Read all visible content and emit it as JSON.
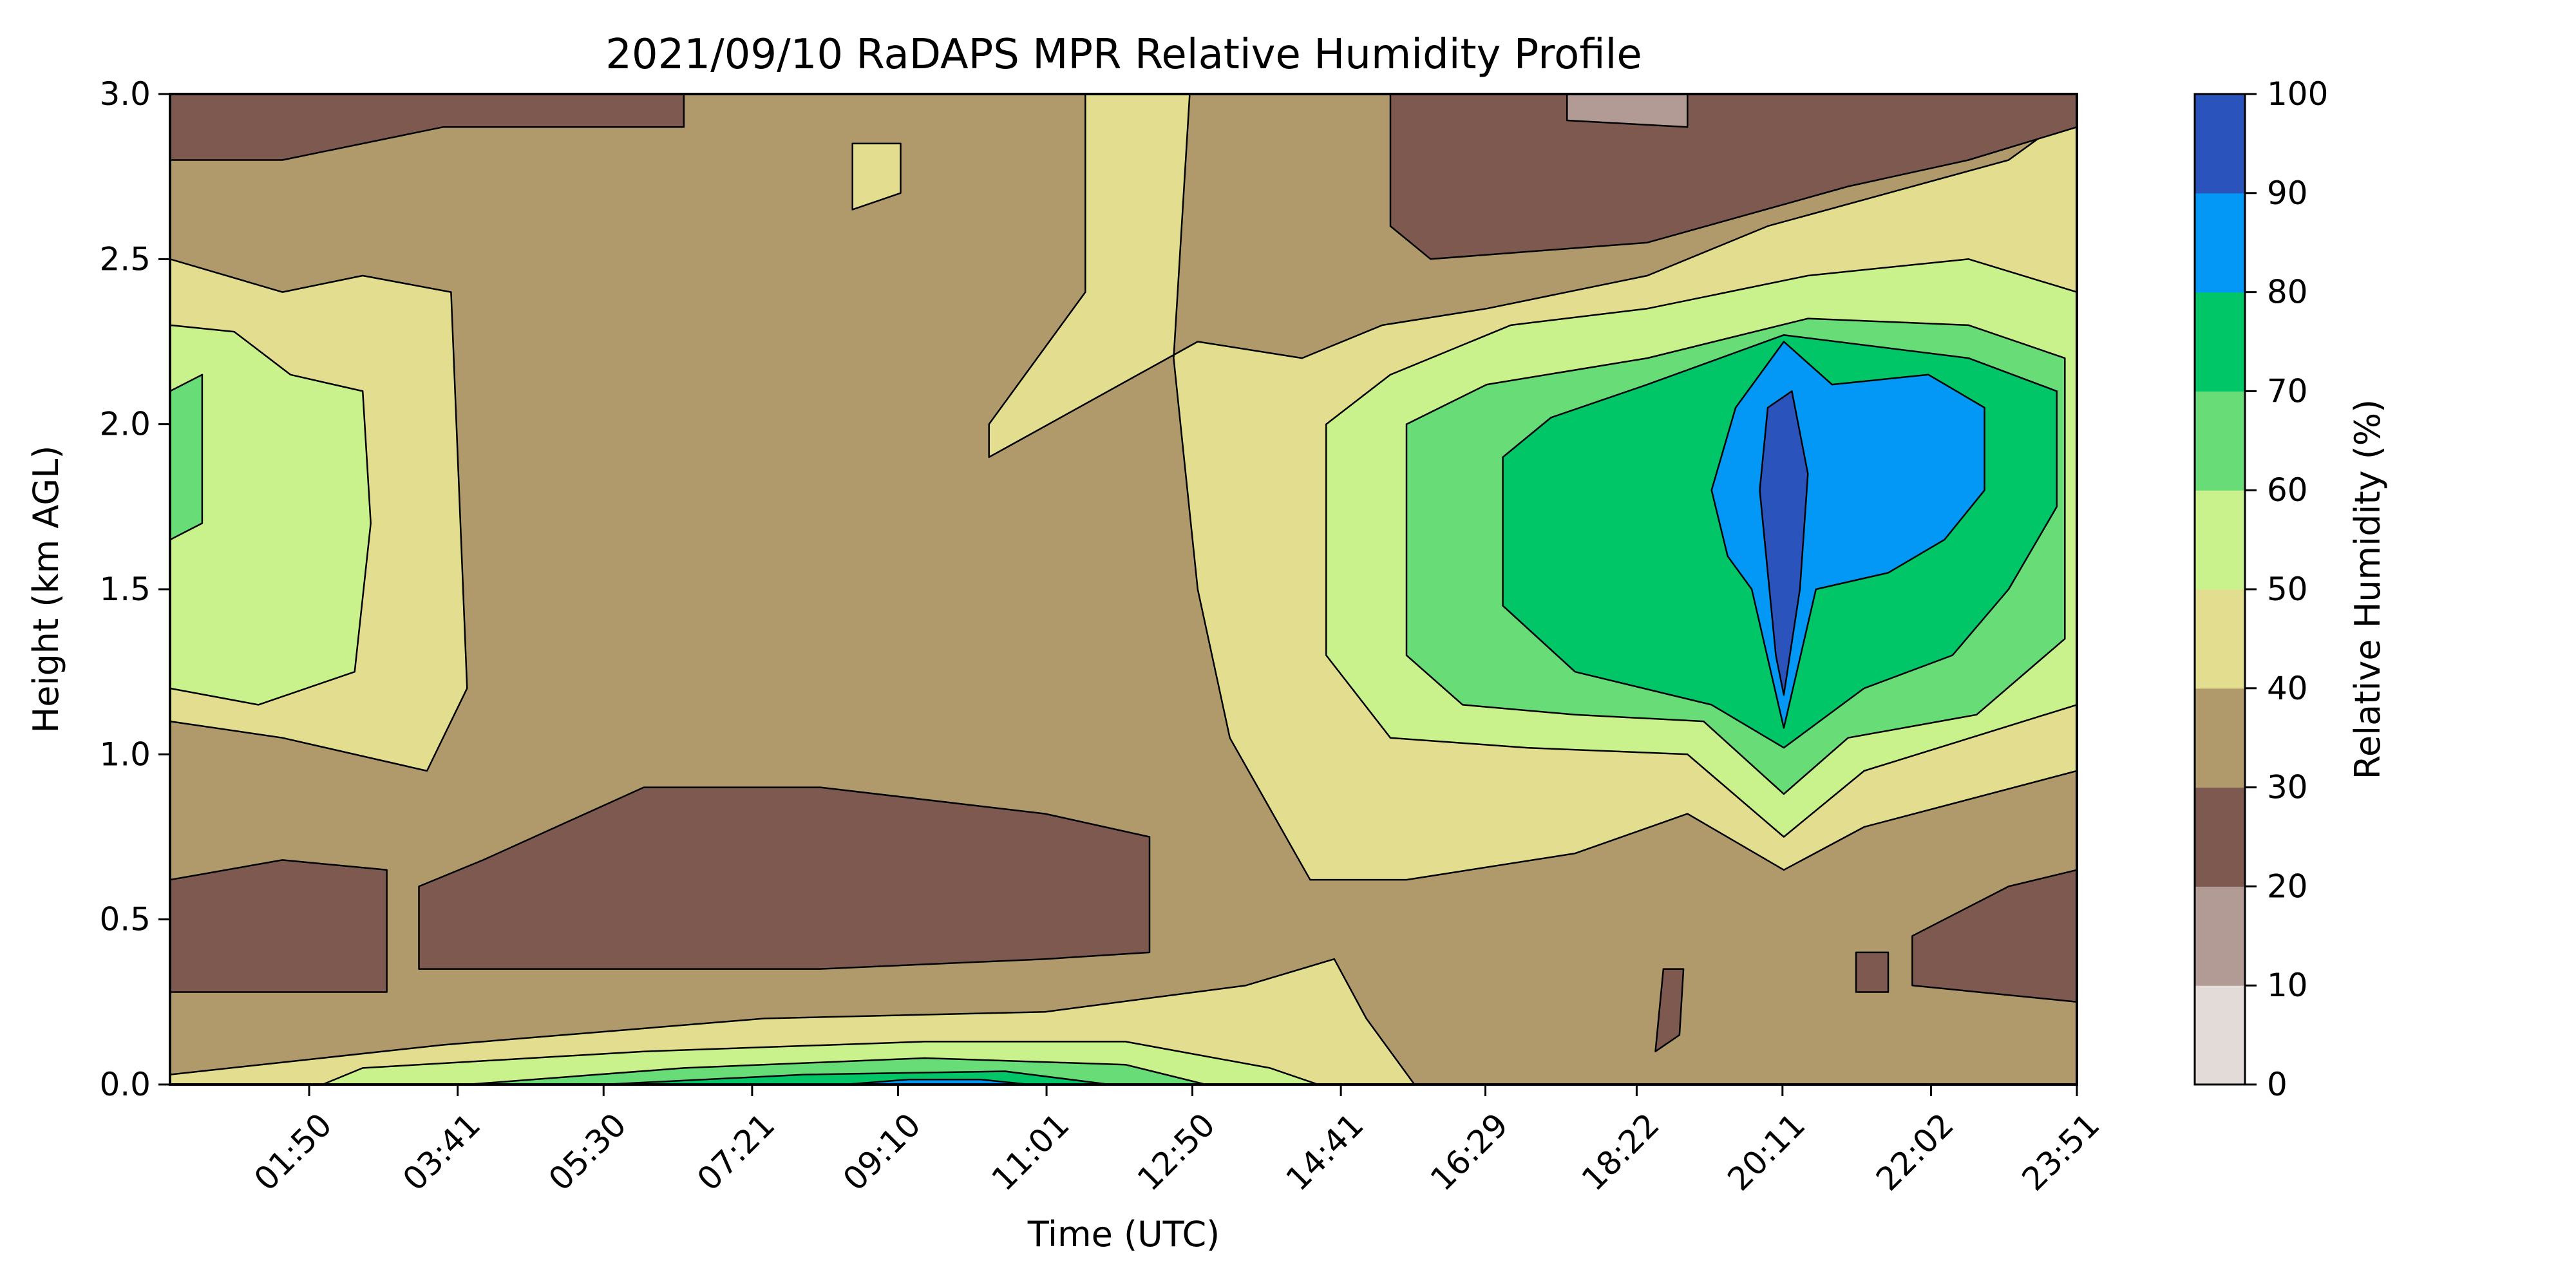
{
  "chart_data": {
    "type": "heatmap",
    "subtype": "filled-contour",
    "title": "2021/09/10 RaDAPS MPR Relative Humidity Profile",
    "xlabel": "Time (UTC)",
    "ylabel": "Height (km AGL)",
    "x_ticks": [
      "01:50",
      "03:41",
      "05:30",
      "07:21",
      "09:10",
      "11:01",
      "12:50",
      "14:41",
      "16:29",
      "18:22",
      "20:11",
      "22:02",
      "23:51"
    ],
    "x_tick_hours": [
      1.833,
      3.683,
      5.5,
      7.35,
      9.167,
      11.017,
      12.833,
      14.683,
      16.483,
      18.367,
      20.183,
      22.033,
      23.85
    ],
    "x_range_hours": [
      0.1,
      23.85
    ],
    "ylim": [
      0,
      3.0
    ],
    "y_ticks": [
      "0.0",
      "0.5",
      "1.0",
      "1.5",
      "2.0",
      "2.5",
      "3.0"
    ],
    "y_tick_values": [
      0,
      0.5,
      1.0,
      1.5,
      2.0,
      2.5,
      3.0
    ],
    "colorbar": {
      "label": "Relative Humidity (%)",
      "levels": [
        0,
        10,
        20,
        30,
        40,
        50,
        60,
        70,
        80,
        90,
        100
      ],
      "tick_labels": [
        "0",
        "10",
        "20",
        "30",
        "40",
        "50",
        "60",
        "70",
        "80",
        "90",
        "100"
      ],
      "colors": [
        "#e2dbd8",
        "#b39b95",
        "#7e5950",
        "#b09a6c",
        "#e3dd8f",
        "#c9f28c",
        "#67dc77",
        "#00c667",
        "#0398f5",
        "#2a53bc"
      ]
    },
    "background_rh": 35,
    "regions": [
      {
        "level": 4,
        "pts": [
          [
            0.1,
            1.1
          ],
          [
            1.5,
            1.05
          ],
          [
            3.3,
            0.95
          ],
          [
            3.8,
            1.2
          ],
          [
            3.6,
            2.4
          ],
          [
            2.5,
            2.45
          ],
          [
            1.5,
            2.4
          ],
          [
            0.1,
            2.5
          ]
        ]
      },
      {
        "level": 5,
        "pts": [
          [
            0.1,
            1.2
          ],
          [
            1.2,
            1.15
          ],
          [
            2.4,
            1.25
          ],
          [
            2.6,
            1.7
          ],
          [
            2.5,
            2.1
          ],
          [
            1.6,
            2.15
          ],
          [
            0.9,
            2.28
          ],
          [
            0.1,
            2.3
          ]
        ]
      },
      {
        "level": 6,
        "pts": [
          [
            0.1,
            1.65
          ],
          [
            0.5,
            1.7
          ],
          [
            0.5,
            2.15
          ],
          [
            0.1,
            2.1
          ]
        ]
      },
      {
        "level": 2,
        "pts": [
          [
            0.1,
            0.28
          ],
          [
            2.8,
            0.28
          ],
          [
            2.8,
            0.65
          ],
          [
            1.5,
            0.68
          ],
          [
            0.1,
            0.62
          ]
        ]
      },
      {
        "level": 2,
        "pts": [
          [
            3.2,
            0.35
          ],
          [
            8.2,
            0.35
          ],
          [
            11.0,
            0.38
          ],
          [
            12.3,
            0.4
          ],
          [
            12.3,
            0.75
          ],
          [
            11.0,
            0.82
          ],
          [
            8.2,
            0.9
          ],
          [
            6.0,
            0.9
          ],
          [
            4.0,
            0.68
          ],
          [
            3.2,
            0.6
          ]
        ]
      },
      {
        "level": 2,
        "pts": [
          [
            0.1,
            2.8
          ],
          [
            1.5,
            2.8
          ],
          [
            3.5,
            2.9
          ],
          [
            6.5,
            2.9
          ],
          [
            6.5,
            3.0
          ],
          [
            0.1,
            3.0
          ]
        ]
      },
      {
        "level": 4,
        "pts": [
          [
            8.6,
            2.65
          ],
          [
            9.2,
            2.7
          ],
          [
            9.2,
            2.85
          ],
          [
            8.6,
            2.85
          ]
        ]
      },
      {
        "level": 4,
        "pts": [
          [
            10.3,
            1.9
          ],
          [
            10.3,
            2.0
          ],
          [
            11.5,
            2.4
          ],
          [
            11.5,
            3.0
          ],
          [
            12.8,
            3.0
          ],
          [
            12.6,
            2.2
          ],
          [
            12.9,
            1.5
          ],
          [
            13.3,
            1.05
          ],
          [
            14.3,
            0.62
          ],
          [
            15.5,
            0.62
          ],
          [
            17.6,
            0.7
          ],
          [
            19.0,
            0.82
          ],
          [
            20.2,
            0.65
          ],
          [
            21.2,
            0.78
          ],
          [
            23.85,
            0.95
          ],
          [
            23.85,
            2.95
          ],
          [
            23.0,
            2.8
          ],
          [
            21.5,
            2.7
          ],
          [
            20.0,
            2.6
          ],
          [
            18.5,
            2.45
          ],
          [
            16.5,
            2.35
          ],
          [
            15.2,
            2.3
          ],
          [
            14.2,
            2.2
          ],
          [
            12.9,
            2.25
          ]
        ]
      },
      {
        "level": 5,
        "pts": [
          [
            14.5,
            1.3
          ],
          [
            15.3,
            1.05
          ],
          [
            17.0,
            1.02
          ],
          [
            19.0,
            1.0
          ],
          [
            20.2,
            0.75
          ],
          [
            21.2,
            0.95
          ],
          [
            23.85,
            1.15
          ],
          [
            23.85,
            2.4
          ],
          [
            22.5,
            2.5
          ],
          [
            20.5,
            2.45
          ],
          [
            18.5,
            2.35
          ],
          [
            16.8,
            2.3
          ],
          [
            15.3,
            2.15
          ],
          [
            14.5,
            2.0
          ]
        ]
      },
      {
        "level": 6,
        "pts": [
          [
            15.5,
            1.3
          ],
          [
            16.2,
            1.15
          ],
          [
            17.6,
            1.12
          ],
          [
            19.2,
            1.1
          ],
          [
            20.2,
            0.88
          ],
          [
            21.0,
            1.05
          ],
          [
            22.6,
            1.12
          ],
          [
            23.7,
            1.35
          ],
          [
            23.7,
            2.2
          ],
          [
            22.5,
            2.3
          ],
          [
            20.5,
            2.32
          ],
          [
            18.5,
            2.2
          ],
          [
            16.5,
            2.12
          ],
          [
            15.5,
            2.0
          ]
        ]
      },
      {
        "level": 7,
        "pts": [
          [
            16.7,
            1.45
          ],
          [
            17.6,
            1.25
          ],
          [
            19.3,
            1.15
          ],
          [
            20.2,
            1.02
          ],
          [
            21.2,
            1.2
          ],
          [
            22.3,
            1.3
          ],
          [
            23.0,
            1.5
          ],
          [
            23.6,
            1.75
          ],
          [
            23.6,
            2.1
          ],
          [
            22.5,
            2.2
          ],
          [
            20.2,
            2.27
          ],
          [
            18.5,
            2.12
          ],
          [
            17.3,
            2.02
          ],
          [
            16.7,
            1.9
          ]
        ]
      },
      {
        "level": 8,
        "pts": [
          [
            19.3,
            1.8
          ],
          [
            19.5,
            1.6
          ],
          [
            19.8,
            1.5
          ],
          [
            20.2,
            1.08
          ],
          [
            20.6,
            1.5
          ],
          [
            21.5,
            1.55
          ],
          [
            22.2,
            1.65
          ],
          [
            22.7,
            1.8
          ],
          [
            22.7,
            2.05
          ],
          [
            22.0,
            2.15
          ],
          [
            20.8,
            2.12
          ],
          [
            20.2,
            2.25
          ],
          [
            19.6,
            2.05
          ]
        ]
      },
      {
        "level": 9,
        "pts": [
          [
            19.9,
            1.8
          ],
          [
            20.1,
            1.3
          ],
          [
            20.2,
            1.18
          ],
          [
            20.4,
            1.5
          ],
          [
            20.5,
            1.85
          ],
          [
            20.3,
            2.1
          ],
          [
            20.0,
            2.05
          ]
        ]
      },
      {
        "level": 2,
        "pts": [
          [
            15.3,
            2.6
          ],
          [
            15.8,
            2.5
          ],
          [
            18.5,
            2.55
          ],
          [
            21.0,
            2.72
          ],
          [
            22.5,
            2.8
          ],
          [
            23.85,
            2.9
          ],
          [
            23.85,
            3.0
          ],
          [
            15.3,
            3.0
          ]
        ]
      },
      {
        "level": 1,
        "pts": [
          [
            17.5,
            2.92
          ],
          [
            19.0,
            2.9
          ],
          [
            19.0,
            3.0
          ],
          [
            17.5,
            3.0
          ]
        ]
      },
      {
        "level": 2,
        "pts": [
          [
            21.8,
            0.3
          ],
          [
            23.85,
            0.25
          ],
          [
            23.85,
            0.65
          ],
          [
            23.0,
            0.6
          ],
          [
            21.8,
            0.45
          ]
        ]
      },
      {
        "level": 2,
        "pts": [
          [
            18.6,
            0.1
          ],
          [
            18.9,
            0.15
          ],
          [
            18.95,
            0.35
          ],
          [
            18.7,
            0.35
          ]
        ]
      },
      {
        "level": 2,
        "pts": [
          [
            21.1,
            0.28
          ],
          [
            21.5,
            0.28
          ],
          [
            21.5,
            0.4
          ],
          [
            21.1,
            0.4
          ]
        ]
      },
      {
        "level": 4,
        "pts": [
          [
            0.1,
            0.03
          ],
          [
            3.5,
            0.12
          ],
          [
            7.5,
            0.2
          ],
          [
            11.0,
            0.22
          ],
          [
            13.5,
            0.3
          ],
          [
            14.6,
            0.38
          ],
          [
            15.0,
            0.2
          ],
          [
            15.6,
            0.0
          ],
          [
            0.1,
            0.0
          ]
        ]
      },
      {
        "level": 5,
        "pts": [
          [
            2.0,
            0.0
          ],
          [
            2.5,
            0.05
          ],
          [
            6.0,
            0.1
          ],
          [
            9.5,
            0.13
          ],
          [
            12.0,
            0.13
          ],
          [
            13.8,
            0.05
          ],
          [
            14.4,
            0.0
          ]
        ]
      },
      {
        "level": 6,
        "pts": [
          [
            3.8,
            0.0
          ],
          [
            6.5,
            0.05
          ],
          [
            9.5,
            0.08
          ],
          [
            12.0,
            0.06
          ],
          [
            13.0,
            0.0
          ]
        ]
      },
      {
        "level": 7,
        "pts": [
          [
            5.5,
            0.0
          ],
          [
            8.0,
            0.03
          ],
          [
            10.5,
            0.04
          ],
          [
            11.8,
            0.0
          ]
        ]
      },
      {
        "level": 8,
        "pts": [
          [
            8.5,
            0.0
          ],
          [
            9.3,
            0.015
          ],
          [
            10.2,
            0.015
          ],
          [
            10.8,
            0.0
          ]
        ]
      }
    ]
  }
}
